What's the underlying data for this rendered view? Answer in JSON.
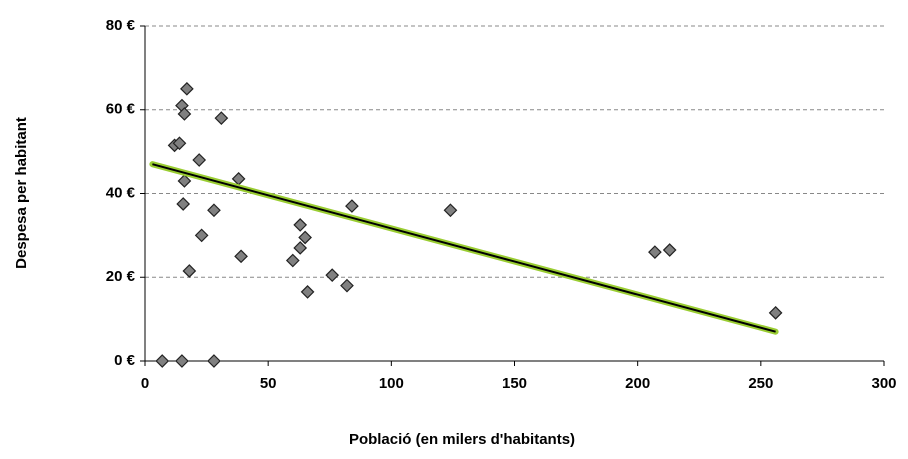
{
  "chart_data": {
    "type": "scatter",
    "xlabel": "Població (en milers d'habitants)",
    "ylabel": "Despesa per habitant",
    "xlim": [
      0,
      300
    ],
    "ylim": [
      0,
      80
    ],
    "xticks": [
      0,
      50,
      100,
      150,
      200,
      250,
      300
    ],
    "yticks": [
      {
        "value": 0,
        "label": "0 €"
      },
      {
        "value": 20,
        "label": "20 €"
      },
      {
        "value": 40,
        "label": "40 €"
      },
      {
        "value": 60,
        "label": "60 €"
      },
      {
        "value": 80,
        "label": "80 €"
      }
    ],
    "grid": true,
    "series": [
      {
        "color": "#808080",
        "x": [
          7,
          15,
          28,
          12,
          14,
          15,
          16,
          17,
          16,
          15.5,
          18,
          22,
          23,
          28,
          31,
          38,
          39,
          60,
          63,
          63,
          65,
          66,
          76,
          82,
          84,
          124,
          207,
          213,
          256
        ],
        "values": [
          0,
          0,
          0,
          51.5,
          52,
          61,
          59,
          65,
          43,
          37.5,
          21.5,
          48,
          30,
          36,
          58,
          43.5,
          25,
          24,
          32.5,
          27,
          29.5,
          16.5,
          20.5,
          18,
          37,
          36,
          26,
          26.5,
          11.5
        ]
      }
    ],
    "trendline": {
      "x": [
        3,
        256
      ],
      "values": [
        47,
        7
      ],
      "color": "#000000",
      "glow": "#9acd32"
    }
  }
}
